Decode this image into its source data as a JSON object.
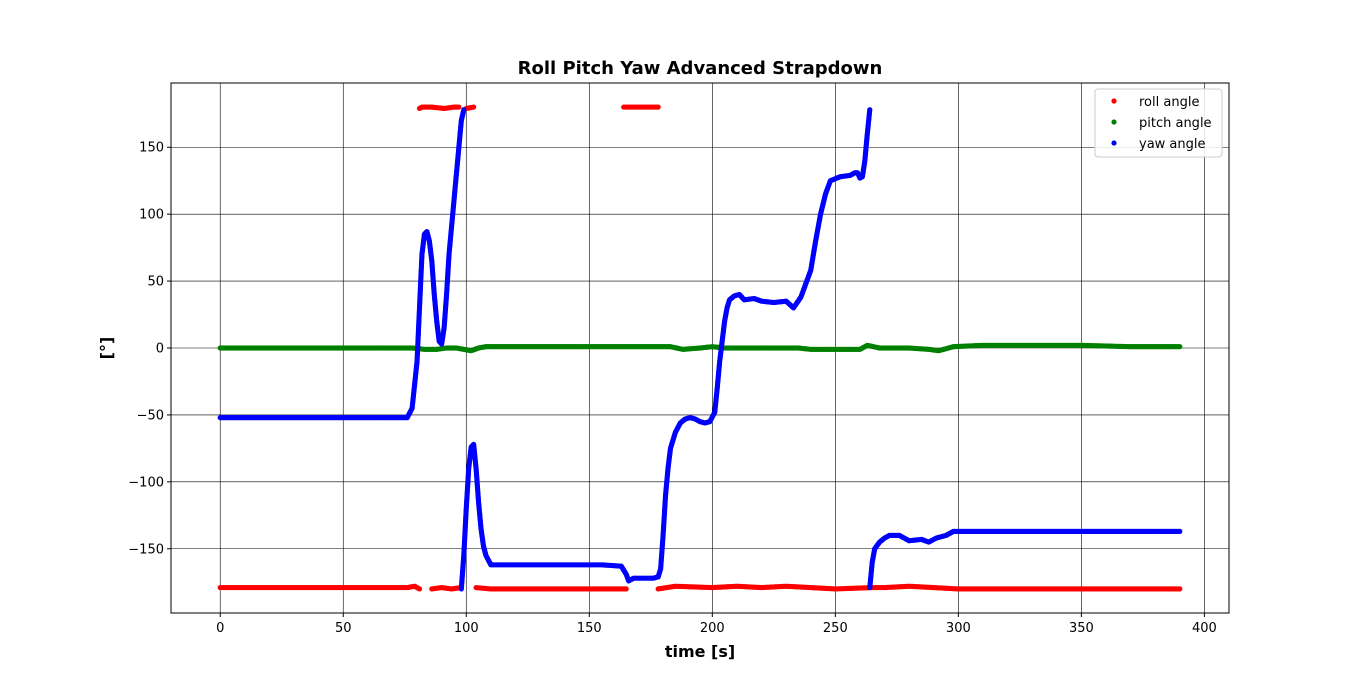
{
  "chart_data": {
    "type": "scatter",
    "title": "Roll Pitch Yaw Advanced Strapdown",
    "xlabel": "time [s]",
    "ylabel": "[°]",
    "xlim": [
      -20,
      410
    ],
    "ylim": [
      -198,
      198
    ],
    "xticks": [
      0,
      50,
      100,
      150,
      200,
      250,
      300,
      350,
      400
    ],
    "yticks": [
      -150,
      -100,
      -50,
      0,
      50,
      100,
      150
    ],
    "ytick_labels": [
      "−150",
      "−100",
      "−50",
      "0",
      "50",
      "100",
      "150"
    ],
    "grid": true,
    "legend_position": "top-right",
    "colors": {
      "roll": "#ff0000",
      "pitch": "#008000",
      "yaw": "#0000ff"
    },
    "series": [
      {
        "name": "roll angle",
        "color": "#ff0000",
        "segments": [
          [
            [
              0,
              -179
            ],
            [
              20,
              -179
            ],
            [
              40,
              -179
            ],
            [
              60,
              -179
            ],
            [
              76,
              -179
            ],
            [
              79,
              -178
            ],
            [
              81,
              -180
            ]
          ],
          [
            [
              86,
              -180
            ],
            [
              90,
              -179
            ],
            [
              94,
              -180
            ],
            [
              98,
              -179
            ]
          ],
          [
            [
              81,
              179
            ],
            [
              82,
              180
            ],
            [
              86,
              180
            ],
            [
              91,
              179
            ],
            [
              95,
              180
            ],
            [
              97,
              180
            ]
          ],
          [
            [
              100,
              179
            ],
            [
              103,
              180
            ]
          ],
          [
            [
              104,
              -179
            ],
            [
              110,
              -180
            ],
            [
              130,
              -180
            ],
            [
              150,
              -180
            ],
            [
              165,
              -180
            ]
          ],
          [
            [
              164,
              180
            ],
            [
              178,
              180
            ]
          ],
          [
            [
              178,
              -180
            ],
            [
              185,
              -178
            ],
            [
              200,
              -179
            ],
            [
              210,
              -178
            ],
            [
              220,
              -179
            ],
            [
              230,
              -178
            ],
            [
              240,
              -179
            ],
            [
              250,
              -180
            ],
            [
              265,
              -179
            ],
            [
              270,
              -179
            ],
            [
              280,
              -178
            ],
            [
              290,
              -179
            ],
            [
              300,
              -180
            ],
            [
              320,
              -180
            ],
            [
              340,
              -180
            ],
            [
              360,
              -180
            ],
            [
              380,
              -180
            ],
            [
              390,
              -180
            ]
          ]
        ]
      },
      {
        "name": "pitch angle",
        "color": "#008000",
        "segments": [
          [
            [
              0,
              0
            ],
            [
              20,
              0
            ],
            [
              40,
              0
            ],
            [
              60,
              0
            ],
            [
              78,
              0
            ],
            [
              83,
              -1
            ],
            [
              88,
              -1
            ],
            [
              92,
              0
            ],
            [
              96,
              0
            ],
            [
              99,
              -1
            ],
            [
              102,
              -2
            ],
            [
              105,
              0
            ],
            [
              108,
              1
            ],
            [
              120,
              1
            ],
            [
              140,
              1
            ],
            [
              160,
              1
            ],
            [
              175,
              1
            ],
            [
              183,
              1
            ],
            [
              188,
              -1
            ],
            [
              195,
              0
            ],
            [
              200,
              1
            ],
            [
              205,
              0
            ],
            [
              215,
              0
            ],
            [
              225,
              0
            ],
            [
              235,
              0
            ],
            [
              240,
              -1
            ],
            [
              250,
              -1
            ],
            [
              260,
              -1
            ],
            [
              263,
              2
            ],
            [
              268,
              0
            ],
            [
              280,
              0
            ],
            [
              288,
              -1
            ],
            [
              292,
              -2
            ],
            [
              298,
              1
            ],
            [
              310,
              2
            ],
            [
              330,
              2
            ],
            [
              350,
              2
            ],
            [
              370,
              1
            ],
            [
              390,
              1
            ]
          ]
        ]
      },
      {
        "name": "yaw angle",
        "color": "#0000ff",
        "segments": [
          [
            [
              0,
              -52
            ],
            [
              20,
              -52
            ],
            [
              40,
              -52
            ],
            [
              60,
              -52
            ],
            [
              76,
              -52
            ],
            [
              78,
              -45
            ],
            [
              80,
              -10
            ],
            [
              81,
              30
            ],
            [
              82,
              70
            ],
            [
              83,
              85
            ],
            [
              84,
              87
            ],
            [
              85,
              80
            ],
            [
              86,
              65
            ],
            [
              87,
              40
            ],
            [
              88,
              20
            ],
            [
              89,
              5
            ],
            [
              90,
              3
            ],
            [
              91,
              15
            ],
            [
              92,
              40
            ],
            [
              93,
              70
            ],
            [
              95,
              110
            ],
            [
              97,
              150
            ],
            [
              98,
              170
            ],
            [
              99,
              178
            ]
          ],
          [
            [
              98,
              -180
            ],
            [
              99,
              -155
            ],
            [
              100,
              -120
            ],
            [
              101,
              -90
            ],
            [
              102,
              -74
            ],
            [
              103,
              -72
            ],
            [
              104,
              -90
            ],
            [
              105,
              -115
            ],
            [
              106,
              -135
            ],
            [
              107,
              -148
            ],
            [
              108,
              -155
            ],
            [
              110,
              -162
            ],
            [
              120,
              -162
            ],
            [
              140,
              -162
            ],
            [
              155,
              -162
            ],
            [
              163,
              -163
            ],
            [
              165,
              -169
            ],
            [
              166,
              -174
            ],
            [
              168,
              -172
            ],
            [
              172,
              -172
            ],
            [
              176,
              -172
            ],
            [
              178,
              -171
            ],
            [
              179,
              -165
            ],
            [
              180,
              -140
            ],
            [
              181,
              -110
            ],
            [
              182,
              -90
            ],
            [
              183,
              -75
            ],
            [
              185,
              -63
            ],
            [
              187,
              -56
            ],
            [
              189,
              -53
            ],
            [
              191,
              -52
            ],
            [
              193,
              -53
            ],
            [
              195,
              -55
            ],
            [
              197,
              -56
            ],
            [
              199,
              -55
            ],
            [
              201,
              -48
            ],
            [
              202,
              -30
            ],
            [
              203,
              -10
            ],
            [
              204,
              5
            ],
            [
              205,
              20
            ],
            [
              206,
              30
            ],
            [
              207,
              36
            ],
            [
              209,
              39
            ],
            [
              211,
              40
            ],
            [
              213,
              36
            ],
            [
              217,
              37
            ],
            [
              220,
              35
            ],
            [
              225,
              34
            ],
            [
              230,
              35
            ],
            [
              233,
              30
            ],
            [
              236,
              38
            ],
            [
              238,
              48
            ],
            [
              240,
              58
            ],
            [
              242,
              80
            ],
            [
              244,
              100
            ],
            [
              246,
              115
            ],
            [
              248,
              125
            ],
            [
              252,
              128
            ],
            [
              256,
              129
            ],
            [
              258,
              131
            ],
            [
              259,
              131
            ],
            [
              260,
              127
            ],
            [
              261,
              128
            ],
            [
              262,
              140
            ],
            [
              263,
              160
            ],
            [
              264,
              178
            ]
          ],
          [
            [
              264,
              -179
            ],
            [
              265,
              -160
            ],
            [
              266,
              -150
            ],
            [
              268,
              -145
            ],
            [
              270,
              -142
            ],
            [
              272,
              -140
            ],
            [
              276,
              -140
            ],
            [
              278,
              -142
            ],
            [
              280,
              -144
            ],
            [
              285,
              -143
            ],
            [
              288,
              -145
            ],
            [
              291,
              -142
            ],
            [
              295,
              -140
            ],
            [
              298,
              -137
            ],
            [
              310,
              -137
            ],
            [
              330,
              -137
            ],
            [
              350,
              -137
            ],
            [
              370,
              -137
            ],
            [
              390,
              -137
            ]
          ]
        ]
      }
    ]
  }
}
